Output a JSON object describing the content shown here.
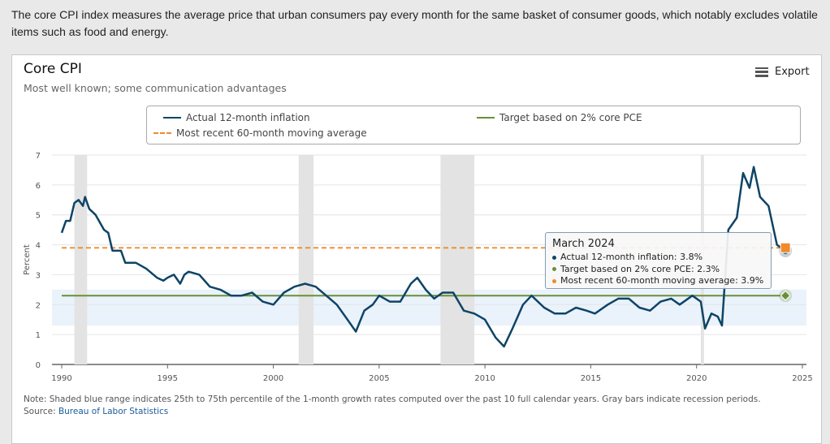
{
  "intro": "The core CPI index measures the average price that urban consumers pay every month for the same basket of consumer goods, which notably excludes volatile items such as food and energy.",
  "card": {
    "title": "Core CPI",
    "subtitle": "Most well known; some communication advantages",
    "export_label": "Export",
    "export_icon": "hamburger-menu-icon"
  },
  "tooltip": {
    "header": "March 2024",
    "rows": [
      "Actual 12-month inflation: 3.8%",
      "Target based on 2% core PCE: 2.3%",
      "Most recent 60-month moving average: 3.9%"
    ]
  },
  "note": "Note: Shaded blue range indicates 25th to 75th percentile of the 1-month growth rates computed over the past 10 full calendar years. Gray bars indicate recession periods.",
  "source_label": "Source:",
  "source_link": "Bureau of Labor Statistics",
  "chart_data": {
    "type": "line",
    "ylabel": "Percent",
    "ylim": [
      0,
      7
    ],
    "xlim": [
      1990,
      2025
    ],
    "x_ticks": [
      "1990",
      "1995",
      "2000",
      "2005",
      "2010",
      "2015",
      "2020",
      "2025"
    ],
    "y_ticks": [
      "0",
      "1",
      "2",
      "3",
      "4",
      "5",
      "6",
      "7"
    ],
    "grid": true,
    "legend_position": "top",
    "colors": {
      "actual": "#0e4466",
      "target": "#6a8f3a",
      "average": "#f08a2c",
      "band": "#eaf2fb",
      "recession": "#e3e3e3"
    },
    "series": [
      {
        "name": "Actual 12-month inflation",
        "style": "solid",
        "x": [
          1990.0,
          1990.2,
          1990.4,
          1990.6,
          1990.8,
          1991.0,
          1991.1,
          1991.3,
          1991.6,
          1992.0,
          1992.2,
          1992.4,
          1992.8,
          1993.0,
          1993.5,
          1994.0,
          1994.5,
          1994.8,
          1995.0,
          1995.3,
          1995.6,
          1995.8,
          1996.0,
          1996.5,
          1997.0,
          1997.5,
          1998.0,
          1998.5,
          1999.0,
          1999.5,
          2000.0,
          2000.5,
          2001.0,
          2001.5,
          2002.0,
          2002.5,
          2003.0,
          2003.5,
          2003.9,
          2004.3,
          2004.7,
          2005.0,
          2005.5,
          2006.0,
          2006.5,
          2006.8,
          2007.2,
          2007.6,
          2008.0,
          2008.5,
          2009.0,
          2009.5,
          2010.0,
          2010.5,
          2010.9,
          2011.3,
          2011.8,
          2012.2,
          2012.8,
          2013.3,
          2013.8,
          2014.3,
          2014.8,
          2015.2,
          2015.8,
          2016.3,
          2016.8,
          2017.3,
          2017.8,
          2018.3,
          2018.8,
          2019.2,
          2019.8,
          2020.2,
          2020.4,
          2020.7,
          2021.0,
          2021.2,
          2021.5,
          2021.9,
          2022.2,
          2022.5,
          2022.7,
          2023.0,
          2023.4,
          2023.8,
          2024.2
        ],
        "values": [
          4.4,
          4.8,
          4.8,
          5.4,
          5.5,
          5.3,
          5.6,
          5.2,
          5.0,
          4.5,
          4.4,
          3.8,
          3.8,
          3.4,
          3.4,
          3.2,
          2.9,
          2.8,
          2.9,
          3.0,
          2.7,
          3.0,
          3.1,
          3.0,
          2.6,
          2.5,
          2.3,
          2.3,
          2.4,
          2.1,
          2.0,
          2.4,
          2.6,
          2.7,
          2.6,
          2.3,
          2.0,
          1.5,
          1.1,
          1.8,
          2.0,
          2.3,
          2.1,
          2.1,
          2.7,
          2.9,
          2.5,
          2.2,
          2.4,
          2.4,
          1.8,
          1.7,
          1.5,
          0.9,
          0.6,
          1.2,
          2.0,
          2.3,
          1.9,
          1.7,
          1.7,
          1.9,
          1.8,
          1.7,
          2.0,
          2.2,
          2.2,
          1.9,
          1.8,
          2.1,
          2.2,
          2.0,
          2.3,
          2.1,
          1.2,
          1.7,
          1.6,
          1.3,
          4.5,
          4.9,
          6.4,
          5.9,
          6.6,
          5.6,
          5.3,
          4.0,
          3.8
        ]
      },
      {
        "name": "Target based on 2% core PCE",
        "style": "solid",
        "x": [
          1990,
          2024.2
        ],
        "values": [
          2.3,
          2.3
        ]
      },
      {
        "name": "Most recent 60-month moving average",
        "style": "dashed",
        "x": [
          1990,
          2024.2
        ],
        "values": [
          3.9,
          3.9
        ]
      }
    ],
    "band": [
      1.3,
      2.5
    ],
    "recessions": [
      [
        1990.6,
        1991.2
      ],
      [
        2001.2,
        2001.9
      ],
      [
        2007.9,
        2009.5
      ],
      [
        2020.2,
        2020.35
      ]
    ]
  }
}
